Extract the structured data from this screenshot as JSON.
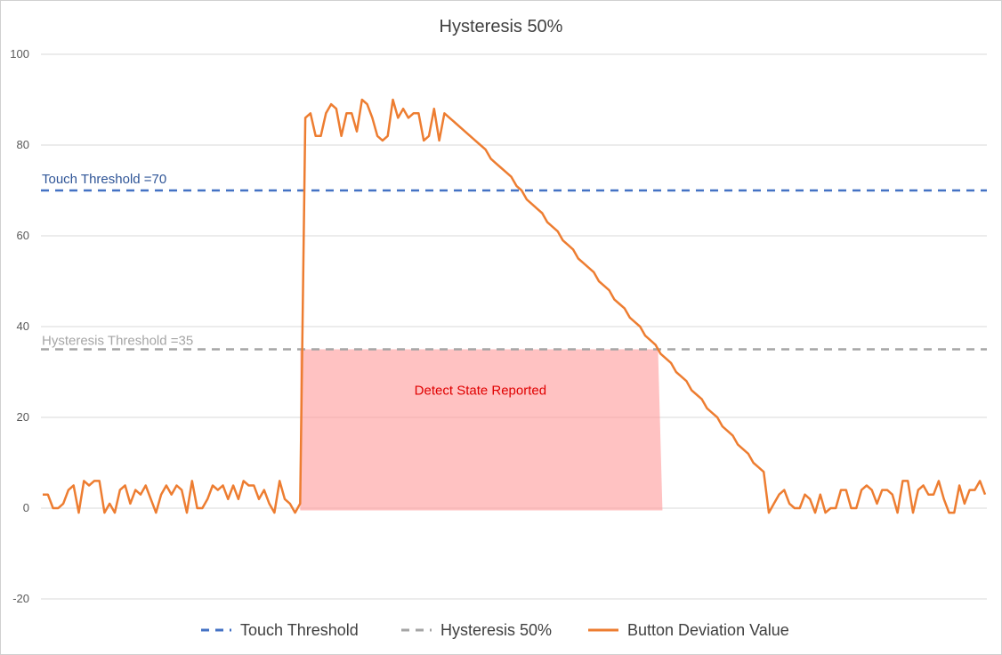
{
  "chart_data": {
    "type": "line",
    "title": "Hysteresis 50%",
    "xlabel": "",
    "ylabel": "",
    "ylim": [
      -20,
      100
    ],
    "y_ticks": [
      -20,
      0,
      20,
      40,
      60,
      80,
      100
    ],
    "grid": true,
    "legend_position": "bottom",
    "series": [
      {
        "name": "Touch Threshold",
        "style": "dashed",
        "color": "#4472C4",
        "constant": 70
      },
      {
        "name": "Hysteresis 50%",
        "style": "dashed",
        "color": "#A5A5A5",
        "constant": 35
      },
      {
        "name": "Button Deviation Value",
        "style": "solid",
        "color": "#ED7D31",
        "values": [
          3,
          3,
          0,
          0,
          1,
          4,
          5,
          -1,
          6,
          5,
          6,
          6,
          -1,
          1,
          -1,
          4,
          5,
          1,
          4,
          3,
          5,
          2,
          -1,
          3,
          5,
          3,
          5,
          4,
          -1,
          6,
          0,
          0,
          2,
          5,
          4,
          5,
          2,
          5,
          2,
          6,
          5,
          5,
          2,
          4,
          1,
          -1,
          6,
          2,
          1,
          -1,
          1,
          86,
          87,
          82,
          82,
          87,
          89,
          88,
          82,
          87,
          87,
          83,
          90,
          89,
          86,
          82,
          81,
          82,
          90,
          86,
          88,
          86,
          87,
          87,
          81,
          82,
          88,
          81,
          87,
          86,
          85,
          84,
          83,
          82,
          81,
          80,
          79,
          77,
          76,
          75,
          74,
          73,
          71,
          70,
          68,
          67,
          66,
          65,
          63,
          62,
          61,
          59,
          58,
          57,
          55,
          54,
          53,
          52,
          50,
          49,
          48,
          46,
          45,
          44,
          42,
          41,
          40,
          38,
          37,
          36,
          34,
          33,
          32,
          30,
          29,
          28,
          26,
          25,
          24,
          22,
          21,
          20,
          18,
          17,
          16,
          14,
          13,
          12,
          10,
          9,
          8,
          -1,
          1,
          3,
          4,
          1,
          0,
          0,
          3,
          2,
          -1,
          3,
          -1,
          0,
          0,
          4,
          4,
          0,
          0,
          4,
          5,
          4,
          1,
          4,
          4,
          3,
          -1,
          6,
          6,
          -1,
          4,
          5,
          3,
          3,
          6,
          2,
          -1,
          -1,
          5,
          1,
          4,
          4,
          6,
          3
        ]
      }
    ],
    "annotations": {
      "touch_threshold_label": "Touch Threshold =70",
      "hysteresis_label": "Hysteresis Threshold =35",
      "detect_region_label": "Detect State Reported",
      "detect_region_color": "#FF9999",
      "detect_text_color": "#E00000"
    },
    "legend": [
      "Touch Threshold",
      "Hysteresis 50%",
      "Button Deviation Value"
    ]
  }
}
